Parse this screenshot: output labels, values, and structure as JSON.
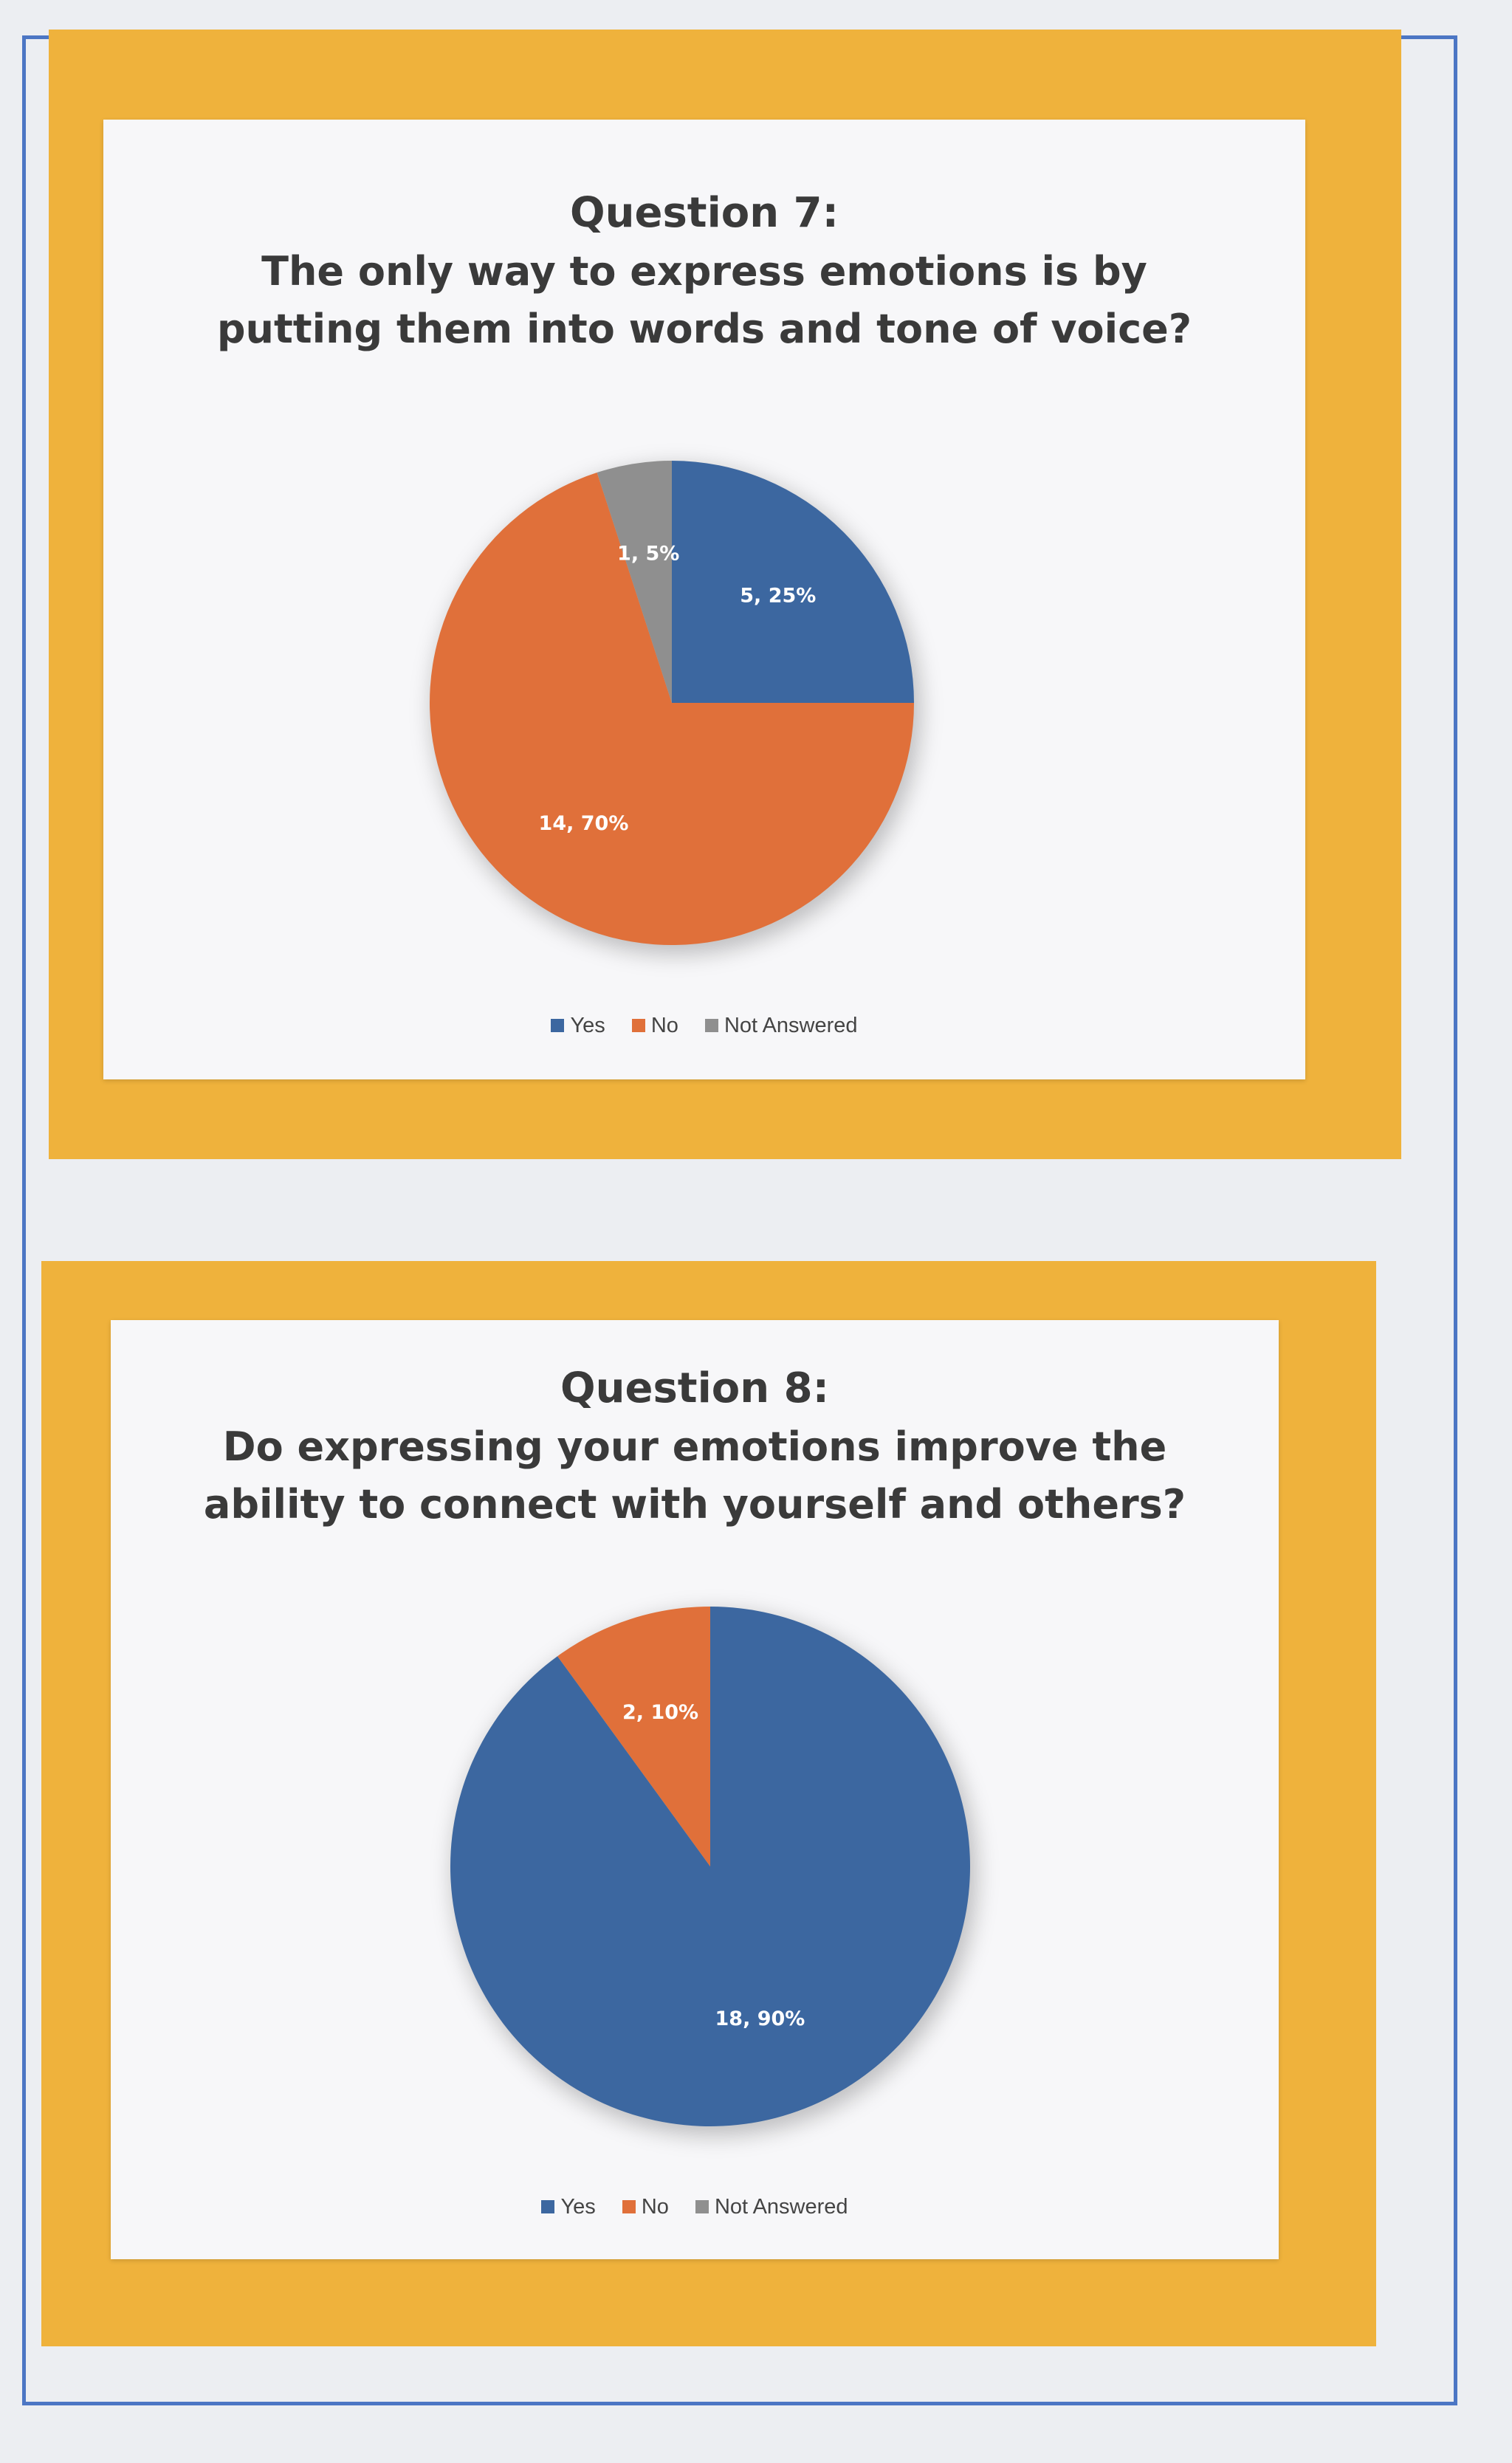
{
  "colors": {
    "yes": "#3c67a0",
    "no": "#e0703a",
    "not_answered": "#8f8f8f",
    "panel": "#efb23c",
    "frame": "#4c76c4"
  },
  "chart_data": [
    {
      "type": "pie",
      "title": "Question 7:",
      "subtitle": "The only way to express emotions is by putting them into words and tone of voice?",
      "categories": [
        "Yes",
        "No",
        "Not Answered"
      ],
      "values": [
        5,
        14,
        1
      ],
      "percentages": [
        25,
        70,
        5
      ],
      "data_labels": [
        "5, 25%",
        "14, 70%",
        "1, 5%"
      ],
      "legend": [
        "Yes",
        "No",
        "Not Answered"
      ],
      "legend_position": "bottom"
    },
    {
      "type": "pie",
      "title": "Question 8:",
      "subtitle": "Do expressing your emotions improve the ability to connect with yourself and others?",
      "categories": [
        "Yes",
        "No",
        "Not Answered"
      ],
      "values": [
        18,
        2,
        0
      ],
      "percentages": [
        90,
        10,
        0
      ],
      "data_labels": [
        "18, 90%",
        "2, 10%",
        ""
      ],
      "legend": [
        "Yes",
        "No",
        "Not Answered"
      ],
      "legend_position": "bottom"
    }
  ]
}
